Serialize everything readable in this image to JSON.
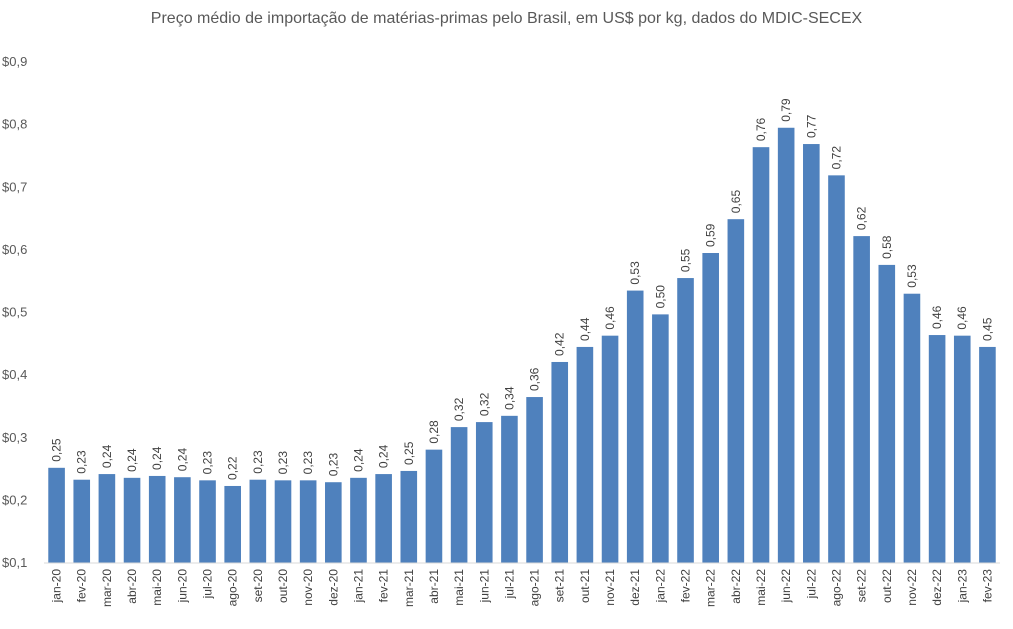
{
  "chart_data": {
    "type": "bar",
    "title": "Preço médio de importação de matérias-primas pelo Brasil, em US$ por kg, dados do MDIC-SECEX",
    "xlabel": "",
    "ylabel": "",
    "ylim": [
      0.1,
      0.9
    ],
    "yticks": [
      "$0,1",
      "$0,2",
      "$0,3",
      "$0,4",
      "$0,5",
      "$0,6",
      "$0,7",
      "$0,8",
      "$0,9"
    ],
    "ytick_values": [
      0.1,
      0.2,
      0.3,
      0.4,
      0.5,
      0.6,
      0.7,
      0.8,
      0.9
    ],
    "grid": false,
    "bar_color": "#4f81bd",
    "categories": [
      "jan-20",
      "fev-20",
      "mar-20",
      "abr-20",
      "mai-20",
      "jun-20",
      "jul-20",
      "ago-20",
      "set-20",
      "out-20",
      "nov-20",
      "dez-20",
      "jan-21",
      "fev-21",
      "mar-21",
      "abr-21",
      "mai-21",
      "jun-21",
      "jul-21",
      "ago-21",
      "set-21",
      "out-21",
      "nov-21",
      "dez-21",
      "jan-22",
      "fev-22",
      "mar-22",
      "abr-22",
      "mai-22",
      "jun-22",
      "jul-22",
      "ago-22",
      "set-22",
      "out-22",
      "nov-22",
      "dez-22",
      "jan-23",
      "fev-23"
    ],
    "values": [
      0.252,
      0.233,
      0.242,
      0.236,
      0.239,
      0.237,
      0.232,
      0.223,
      0.233,
      0.232,
      0.232,
      0.229,
      0.236,
      0.242,
      0.247,
      0.281,
      0.317,
      0.325,
      0.335,
      0.365,
      0.421,
      0.445,
      0.463,
      0.535,
      0.497,
      0.555,
      0.595,
      0.649,
      0.764,
      0.795,
      0.769,
      0.719,
      0.622,
      0.576,
      0.53,
      0.464,
      0.463,
      0.445
    ],
    "data_labels": [
      "0,25",
      "0,23",
      "0,24",
      "0,24",
      "0,24",
      "0,24",
      "0,23",
      "0,22",
      "0,23",
      "0,23",
      "0,23",
      "0,23",
      "0,24",
      "0,24",
      "0,25",
      "0,28",
      "0,32",
      "0,32",
      "0,34",
      "0,36",
      "0,42",
      "0,44",
      "0,46",
      "0,53",
      "0,50",
      "0,55",
      "0,59",
      "0,65",
      "0,76",
      "0,79",
      "0,77",
      "0,72",
      "0,62",
      "0,58",
      "0,53",
      "0,46",
      "0,46",
      "0,45"
    ]
  }
}
